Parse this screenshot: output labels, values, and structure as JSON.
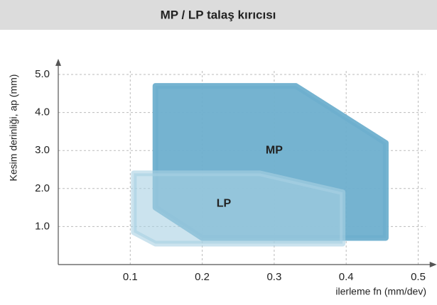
{
  "chart_data": {
    "type": "polygon",
    "title": "MP / LP talaş kırıcısı",
    "xlabel": "ilerleme fn (mm/dev)",
    "ylabel": "Kesim derinliği, ap (mm)",
    "xlim": [
      0,
      0.52
    ],
    "ylim": [
      0,
      5.3
    ],
    "xticks": [
      0.1,
      0.2,
      0.3,
      0.4,
      0.5
    ],
    "yticks": [
      {
        "value": 1,
        "label": "1.0"
      },
      {
        "value": 2,
        "label": "2.0"
      },
      {
        "value": 3,
        "label": "3.0"
      },
      {
        "value": 4,
        "label": "4.0"
      },
      {
        "value": 5,
        "label": "5.0"
      }
    ],
    "grid": true,
    "series": [
      {
        "name": "MP",
        "color": "#6eafcd",
        "x": [
          0.135,
          0.33,
          0.455,
          0.455,
          0.2,
          0.135
        ],
        "y": [
          4.7,
          4.7,
          3.2,
          0.7,
          0.7,
          1.5
        ]
      },
      {
        "name": "LP",
        "color": "#a9d0e3",
        "x": [
          0.105,
          0.28,
          0.395,
          0.395,
          0.135,
          0.105
        ],
        "y": [
          2.4,
          2.4,
          1.9,
          0.55,
          0.55,
          0.85
        ]
      }
    ],
    "annotations": [
      {
        "text": "MP",
        "x": 0.3,
        "y": 3.0
      },
      {
        "text": "LP",
        "x": 0.23,
        "y": 1.6
      }
    ]
  }
}
